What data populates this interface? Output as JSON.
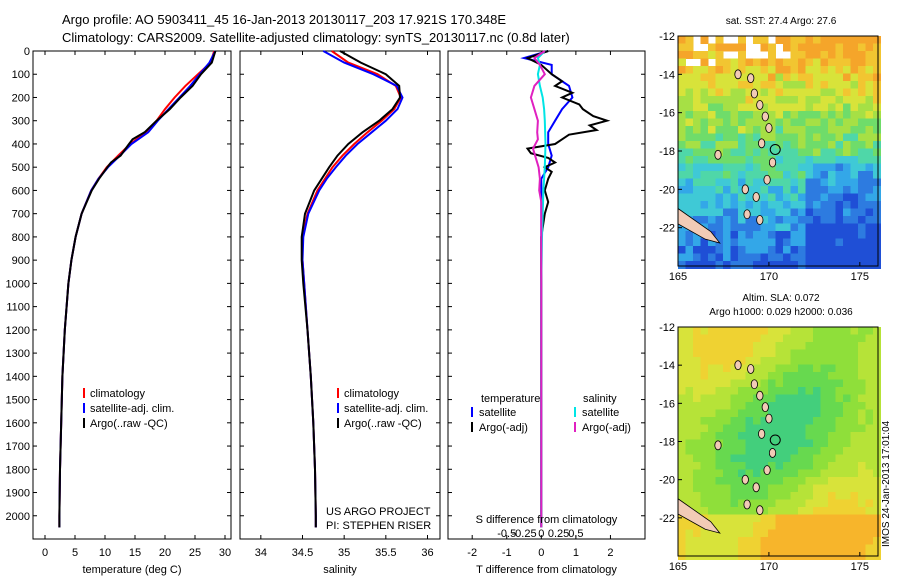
{
  "header": {
    "line1": "Argo profile: AO 5903411_45 16-Jan-2013 20130117_203 17.921S 170.348E",
    "line2": "Climatology: CARS2009. Satellite-adjusted climatology: synTS_20130117.nc (0.8d later)"
  },
  "credit": {
    "line1": "US ARGO PROJECT",
    "line2": "PI: STEPHEN RISER"
  },
  "side_stamp": "IMOS 24-Jan-2013 17:01:04",
  "colors": {
    "climatology": "#ff0000",
    "satellite": "#0000ff",
    "argo": "#000000",
    "sat_s": "#00e5e5",
    "argo_s": "#e020c0"
  },
  "chart_data": [
    {
      "type": "line",
      "panel": "temperature",
      "xlabel": "temperature (deg C)",
      "ylabel": "",
      "xlim": [
        -2,
        31
      ],
      "ylim": [
        2100,
        0
      ],
      "xticks": [
        0,
        5,
        10,
        15,
        20,
        25,
        30
      ],
      "yticks": [
        0,
        100,
        200,
        300,
        400,
        500,
        600,
        700,
        800,
        900,
        1000,
        1100,
        1200,
        1300,
        1400,
        1500,
        1600,
        1700,
        1800,
        1900,
        2000
      ],
      "legend": [
        "climatology",
        "satellite-adj. clim.",
        "Argo(..raw -QC)"
      ],
      "series": [
        {
          "name": "climatology",
          "depth": [
            0,
            50,
            100,
            150,
            200,
            250,
            300,
            350,
            400,
            450,
            500,
            550,
            600,
            700,
            800,
            900,
            1000,
            1200,
            1400,
            1600,
            1800,
            2000,
            2050
          ],
          "values": [
            28.2,
            27.6,
            25.5,
            23.4,
            21.6,
            20.0,
            18.6,
            16.8,
            14.2,
            12.2,
            10.3,
            8.9,
            7.7,
            6.1,
            5.1,
            4.4,
            3.9,
            3.3,
            2.9,
            2.7,
            2.5,
            2.4,
            2.4
          ]
        },
        {
          "name": "satellite-adj. clim.",
          "depth": [
            0,
            50,
            100,
            150,
            200,
            250,
            300,
            350,
            400,
            450,
            500,
            550,
            600,
            700,
            800,
            900,
            1000,
            1200,
            1400,
            1600,
            1800,
            2000,
            2050
          ],
          "values": [
            28.4,
            27.4,
            25.8,
            24.2,
            22.4,
            20.6,
            18.8,
            17.2,
            14.4,
            12.5,
            10.5,
            8.9,
            7.7,
            6.1,
            5.1,
            4.4,
            3.9,
            3.3,
            2.9,
            2.7,
            2.5,
            2.4,
            2.4
          ]
        },
        {
          "name": "Argo(..raw -QC)",
          "depth": [
            0,
            50,
            100,
            150,
            200,
            250,
            300,
            350,
            380,
            400,
            450,
            480,
            500,
            550,
            600,
            700,
            800,
            900,
            1000,
            1200,
            1400,
            1600,
            1800,
            2000,
            2050
          ],
          "values": [
            28.4,
            27.8,
            26.0,
            24.6,
            22.6,
            20.8,
            18.6,
            16.6,
            14.6,
            14.0,
            12.6,
            11.0,
            10.4,
            9.0,
            7.8,
            6.1,
            5.1,
            4.4,
            3.9,
            3.3,
            2.9,
            2.7,
            2.5,
            2.4,
            2.4
          ]
        }
      ]
    },
    {
      "type": "line",
      "panel": "salinity",
      "xlabel": "salinity",
      "xlim": [
        33.75,
        36.15
      ],
      "ylim": [
        2100,
        0
      ],
      "xticks": [
        34,
        34.5,
        35,
        35.5,
        36
      ],
      "xticklabels": [
        "34",
        "34.5",
        "35",
        "35.5",
        "36"
      ],
      "legend": [
        "climatology",
        "satellite-adj. clim.",
        "Argo(..raw -QC)"
      ],
      "series": [
        {
          "name": "climatology",
          "depth": [
            0,
            50,
            100,
            150,
            200,
            250,
            300,
            350,
            400,
            450,
            500,
            550,
            600,
            700,
            800,
            900,
            1000,
            1200,
            1400,
            1600,
            1800,
            2000,
            2050
          ],
          "values": [
            34.85,
            35.05,
            35.4,
            35.62,
            35.68,
            35.6,
            35.45,
            35.28,
            35.12,
            34.98,
            34.86,
            34.77,
            34.68,
            34.56,
            34.5,
            34.5,
            34.52,
            34.56,
            34.6,
            34.63,
            34.65,
            34.66,
            34.66
          ]
        },
        {
          "name": "satellite-adj. clim.",
          "depth": [
            0,
            50,
            100,
            150,
            200,
            250,
            300,
            350,
            400,
            450,
            500,
            550,
            600,
            700,
            800,
            900,
            1000,
            1200,
            1400,
            1600,
            1800,
            2000,
            2050
          ],
          "values": [
            34.75,
            35.0,
            35.35,
            35.63,
            35.7,
            35.64,
            35.5,
            35.33,
            35.16,
            35.02,
            34.9,
            34.79,
            34.7,
            34.57,
            34.51,
            34.5,
            34.52,
            34.56,
            34.6,
            34.63,
            34.65,
            34.66,
            34.66
          ]
        },
        {
          "name": "Argo(..raw -QC)",
          "depth": [
            0,
            50,
            100,
            150,
            200,
            250,
            300,
            350,
            400,
            450,
            500,
            550,
            600,
            700,
            800,
            900,
            1000,
            1200,
            1400,
            1600,
            1800,
            2000,
            2050
          ],
          "values": [
            34.95,
            35.2,
            35.5,
            35.66,
            35.67,
            35.58,
            35.42,
            35.22,
            35.05,
            34.92,
            34.82,
            34.73,
            34.64,
            34.53,
            34.49,
            34.49,
            34.51,
            34.56,
            34.6,
            34.63,
            34.65,
            34.66,
            34.66
          ]
        }
      ]
    },
    {
      "type": "line",
      "panel": "differences",
      "xlabel": "T difference from climatology",
      "xlabel_top": "S difference from climatology",
      "xlim": [
        -2.7,
        3.0
      ],
      "ylim": [
        2100,
        0
      ],
      "xticks": [
        -2,
        -1,
        0,
        1,
        2
      ],
      "xticklabels": [
        "-2",
        "-1",
        "0",
        "1",
        "2"
      ],
      "sticks": [
        -0.5,
        -0.25,
        0,
        0.25,
        0.5
      ],
      "sticklabels": [
        "-0.5",
        "-0.25",
        "0",
        "0.25",
        "0.5"
      ],
      "legend_title_left": "temperature",
      "legend_title_right": "salinity",
      "legend_left": [
        "satellite",
        "Argo(-adj)"
      ],
      "legend_right": [
        "satellite",
        "Argo(-adj)"
      ],
      "series": [
        {
          "name": "temperature satellite",
          "depth": [
            0,
            30,
            60,
            100,
            150,
            200,
            250,
            300,
            350,
            400,
            450,
            500,
            550,
            600,
            700,
            800,
            1000,
            1200,
            1400,
            1600,
            1800,
            2000,
            2050
          ],
          "values": [
            0.2,
            -0.5,
            0.3,
            0.3,
            0.8,
            0.9,
            0.6,
            0.4,
            0.2,
            0.2,
            0.3,
            0.2,
            0.0,
            0.0,
            0.0,
            0.0,
            0.0,
            0.0,
            0.0,
            0.0,
            0.0,
            0.0,
            0.0
          ]
        },
        {
          "name": "temperature Argo(-adj)",
          "depth": [
            0,
            30,
            60,
            100,
            130,
            150,
            180,
            200,
            230,
            250,
            280,
            300,
            320,
            340,
            360,
            380,
            400,
            420,
            440,
            460,
            480,
            500,
            520,
            550,
            600,
            650,
            700,
            800,
            900,
            1000,
            1200,
            1400,
            1600,
            1800,
            2000,
            2050
          ],
          "values": [
            0.2,
            -0.4,
            0.0,
            0.3,
            0.6,
            0.4,
            0.9,
            0.6,
            1.1,
            1.2,
            1.5,
            1.9,
            1.4,
            1.6,
            0.8,
            0.6,
            0.4,
            -0.4,
            -0.3,
            0.2,
            0.4,
            0.1,
            0.3,
            0.2,
            0.1,
            0.2,
            0.1,
            0.0,
            0.0,
            0.0,
            0.0,
            0.0,
            0.0,
            0.0,
            0.0,
            0.0
          ]
        },
        {
          "name": "salinity satellite",
          "depth": [
            0,
            30,
            60,
            100,
            150,
            200,
            250,
            300,
            400,
            500,
            600,
            700,
            800,
            1000,
            1200,
            1400,
            1600,
            1800,
            2000,
            2050
          ],
          "values": [
            0.05,
            -0.05,
            -0.02,
            -0.05,
            -0.02,
            0.02,
            0.04,
            0.05,
            0.06,
            0.05,
            0.03,
            0.02,
            0.01,
            0.0,
            0.0,
            0.0,
            0.0,
            0.0,
            0.0,
            0.0
          ]
        },
        {
          "name": "salinity Argo(-adj)",
          "depth": [
            0,
            30,
            60,
            100,
            150,
            200,
            250,
            300,
            350,
            380,
            420,
            460,
            500,
            550,
            600,
            650,
            700,
            800,
            1000,
            1200,
            1400,
            1600,
            1800,
            2000,
            2050
          ],
          "values": [
            0.05,
            -0.1,
            -0.02,
            0.05,
            -0.1,
            -0.15,
            -0.1,
            -0.05,
            -0.06,
            -0.05,
            -0.12,
            -0.08,
            -0.04,
            -0.02,
            -0.03,
            0.0,
            0.0,
            0.0,
            0.0,
            0.0,
            0.0,
            0.0,
            0.0,
            0.0,
            0.0
          ]
        }
      ]
    },
    {
      "type": "heatmap",
      "panel": "sst-map",
      "title": "sat. SST: 27.4  Argo: 27.6",
      "xlim": [
        165,
        176
      ],
      "ylim": [
        -24,
        -12
      ],
      "xticks": [
        165,
        170,
        175
      ],
      "yticks": [
        -12,
        -14,
        -16,
        -18,
        -20,
        -22
      ],
      "argo_position": {
        "lon": 170.348,
        "lat": -17.921
      }
    },
    {
      "type": "heatmap",
      "panel": "sla-map",
      "title": "Altim. SLA: 0.072",
      "subtitle": "Argo h1000: 0.029  h2000: 0.036",
      "xlim": [
        165,
        176
      ],
      "ylim": [
        -24,
        -12
      ],
      "xticks": [
        165,
        170,
        175
      ],
      "yticks": [
        -12,
        -14,
        -16,
        -18,
        -20,
        -22
      ],
      "argo_position": {
        "lon": 170.348,
        "lat": -17.921
      }
    }
  ]
}
